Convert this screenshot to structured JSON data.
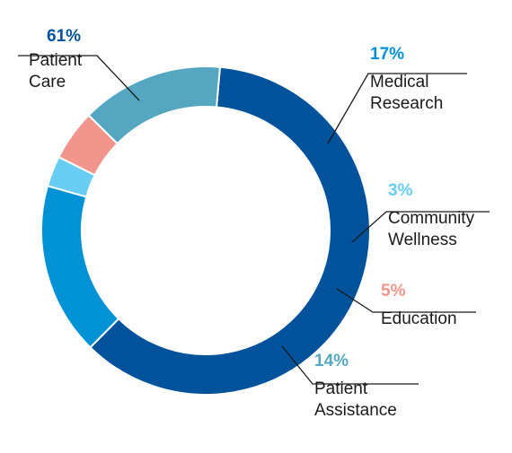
{
  "chart_data": {
    "type": "pie",
    "categories": [
      "Patient Care",
      "Medical Research",
      "Community Wellness",
      "Education",
      "Patient Assistance"
    ],
    "values": [
      61,
      17,
      3,
      5,
      14
    ],
    "value_labels": [
      "61%",
      "17%",
      "3%",
      "5%",
      "14%"
    ],
    "label_lines": [
      [
        "Patient",
        "Care"
      ],
      [
        "Medical",
        "Research"
      ],
      [
        "Community",
        "Wellness"
      ],
      [
        "Education"
      ],
      [
        "Patient",
        "Assistance"
      ]
    ],
    "colors": [
      "#00529b",
      "#0092d4",
      "#67cdf3",
      "#f2958d",
      "#55a7c1"
    ],
    "pct_colors": [
      "#00529b",
      "#0092d4",
      "#67cdf3",
      "#f2958d",
      "#55a7c1"
    ],
    "donut": true,
    "start_angle_deg": 5,
    "legend": "none"
  }
}
